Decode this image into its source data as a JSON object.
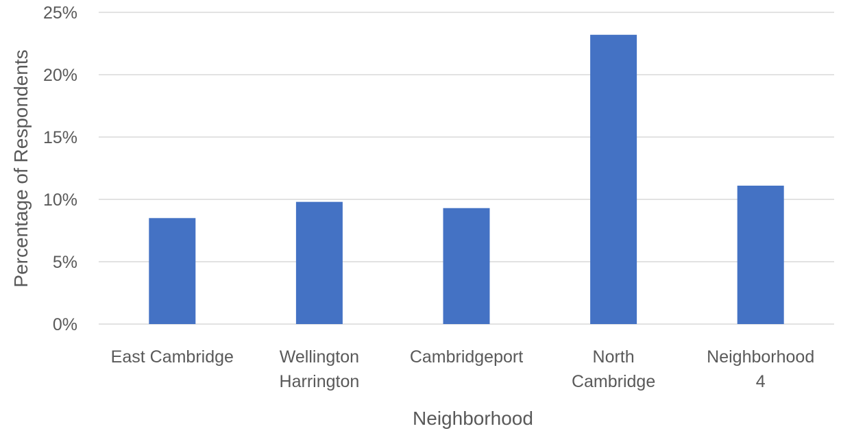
{
  "chart_data": {
    "type": "bar",
    "title": "",
    "xlabel": "Neighborhood",
    "ylabel": "Percentage of Respondents",
    "categories": [
      [
        "East Cambridge"
      ],
      [
        "Wellington",
        "Harrington"
      ],
      [
        "Cambridgeport"
      ],
      [
        "North",
        "Cambridge"
      ],
      [
        "Neighborhood",
        "4"
      ]
    ],
    "values": [
      8.5,
      9.8,
      9.3,
      23.2,
      11.1
    ],
    "value_unit": "%",
    "ylim": [
      0,
      25
    ],
    "yticks": [
      "0%",
      "5%",
      "10%",
      "15%",
      "20%",
      "25%"
    ],
    "ytick_values": [
      0,
      5,
      10,
      15,
      20,
      25
    ],
    "grid": true,
    "legend": "none",
    "bar_color": "#4472c4"
  }
}
